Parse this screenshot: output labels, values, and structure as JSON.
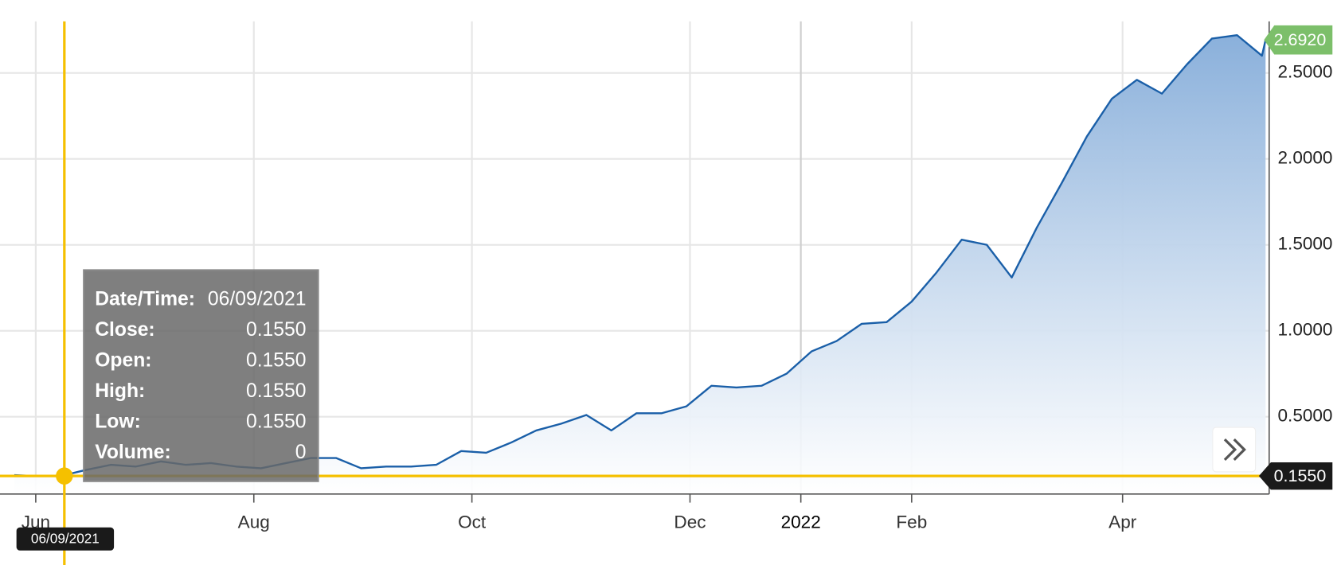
{
  "chart_data": {
    "type": "area",
    "x": [
      "2021-05-26",
      "2021-06-01",
      "2021-06-08",
      "2021-06-15",
      "2021-06-22",
      "2021-06-29",
      "2021-07-06",
      "2021-07-13",
      "2021-07-20",
      "2021-07-27",
      "2021-08-03",
      "2021-08-10",
      "2021-08-17",
      "2021-08-24",
      "2021-08-31",
      "2021-09-07",
      "2021-09-14",
      "2021-09-21",
      "2021-09-28",
      "2021-10-05",
      "2021-10-12",
      "2021-10-19",
      "2021-10-26",
      "2021-11-02",
      "2021-11-09",
      "2021-11-16",
      "2021-11-23",
      "2021-11-30",
      "2021-12-07",
      "2021-12-14",
      "2021-12-21",
      "2021-12-28",
      "2022-01-04",
      "2022-01-11",
      "2022-01-18",
      "2022-01-25",
      "2022-02-01",
      "2022-02-08",
      "2022-02-15",
      "2022-02-22",
      "2022-03-01",
      "2022-03-08",
      "2022-03-15",
      "2022-03-22",
      "2022-03-29",
      "2022-04-05",
      "2022-04-12",
      "2022-04-19",
      "2022-04-26",
      "2022-05-03",
      "2022-05-10",
      "2022-05-11"
    ],
    "values": [
      0.16,
      0.155,
      0.155,
      0.19,
      0.22,
      0.21,
      0.24,
      0.22,
      0.23,
      0.21,
      0.2,
      0.23,
      0.26,
      0.26,
      0.2,
      0.21,
      0.21,
      0.22,
      0.3,
      0.29,
      0.35,
      0.42,
      0.46,
      0.51,
      0.42,
      0.52,
      0.52,
      0.56,
      0.68,
      0.67,
      0.68,
      0.75,
      0.88,
      0.94,
      1.04,
      1.05,
      1.17,
      1.34,
      1.53,
      1.5,
      1.31,
      1.6,
      1.86,
      2.13,
      2.35,
      2.46,
      2.38,
      2.55,
      2.7,
      2.72,
      2.6,
      2.692
    ],
    "color": "#1a5fa8",
    "xlim": [
      "2021-05-22",
      "2022-05-12"
    ],
    "xticks": [
      {
        "value": "2021-06-01",
        "label": "Jun"
      },
      {
        "value": "2021-08-01",
        "label": "Aug"
      },
      {
        "value": "2021-10-01",
        "label": "Oct"
      },
      {
        "value": "2021-12-01",
        "label": "Dec"
      },
      {
        "value": "2022-01-01",
        "label": "2022"
      },
      {
        "value": "2022-02-01",
        "label": "Feb"
      },
      {
        "value": "2022-04-01",
        "label": "Apr"
      }
    ],
    "ylim": [
      0.05,
      2.8
    ],
    "yticks": [
      {
        "value": 0.5,
        "label": "0.5000"
      },
      {
        "value": 1.0,
        "label": "1.0000"
      },
      {
        "value": 1.5,
        "label": "1.5000"
      },
      {
        "value": 2.0,
        "label": "2.0000"
      },
      {
        "value": 2.5,
        "label": "2.5000"
      }
    ],
    "grid": true,
    "last_price": {
      "value": 2.692,
      "label": "2.6920",
      "color": "#7cbf6a"
    },
    "crosshair": {
      "date": "06/09/2021",
      "value": 0.155,
      "label": "0.1550",
      "color": "#f5c000"
    },
    "tooltip": [
      {
        "label": "Date/Time:",
        "value": "06/09/2021"
      },
      {
        "label": "Close:",
        "value": "0.1550"
      },
      {
        "label": "Open:",
        "value": "0.1550"
      },
      {
        "label": "High:",
        "value": "0.1550"
      },
      {
        "label": "Low:",
        "value": "0.1550"
      },
      {
        "label": "Volume:",
        "value": "0"
      }
    ]
  }
}
